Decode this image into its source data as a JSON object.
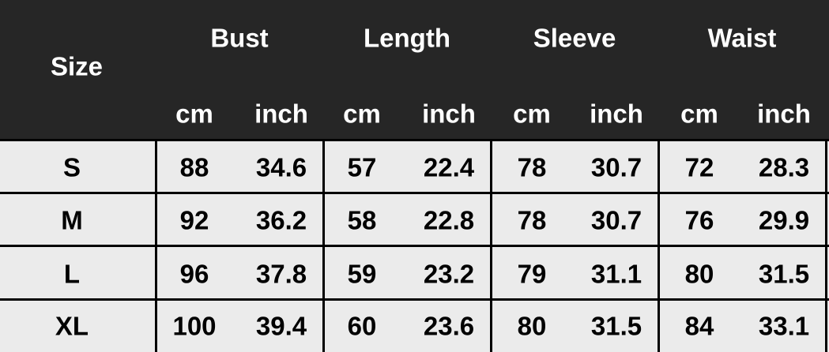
{
  "header": {
    "size_label": "Size",
    "groups": [
      "Bust",
      "Length",
      "Sleeve",
      "Waist"
    ],
    "units": [
      "cm",
      "inch"
    ]
  },
  "rows": [
    {
      "size": "S",
      "values": [
        "88",
        "34.6",
        "57",
        "22.4",
        "78",
        "30.7",
        "72",
        "28.3"
      ]
    },
    {
      "size": "M",
      "values": [
        "92",
        "36.2",
        "58",
        "22.8",
        "78",
        "30.7",
        "76",
        "29.9"
      ]
    },
    {
      "size": "L",
      "values": [
        "96",
        "37.8",
        "59",
        "23.2",
        "79",
        "31.1",
        "80",
        "31.5"
      ]
    },
    {
      "size": "XL",
      "values": [
        "100",
        "39.4",
        "60",
        "23.6",
        "80",
        "31.5",
        "84",
        "33.1"
      ]
    }
  ],
  "colors": {
    "header_bg": "#262626",
    "cell_bg": "#ebebeb",
    "header_text": "#ffffff"
  }
}
